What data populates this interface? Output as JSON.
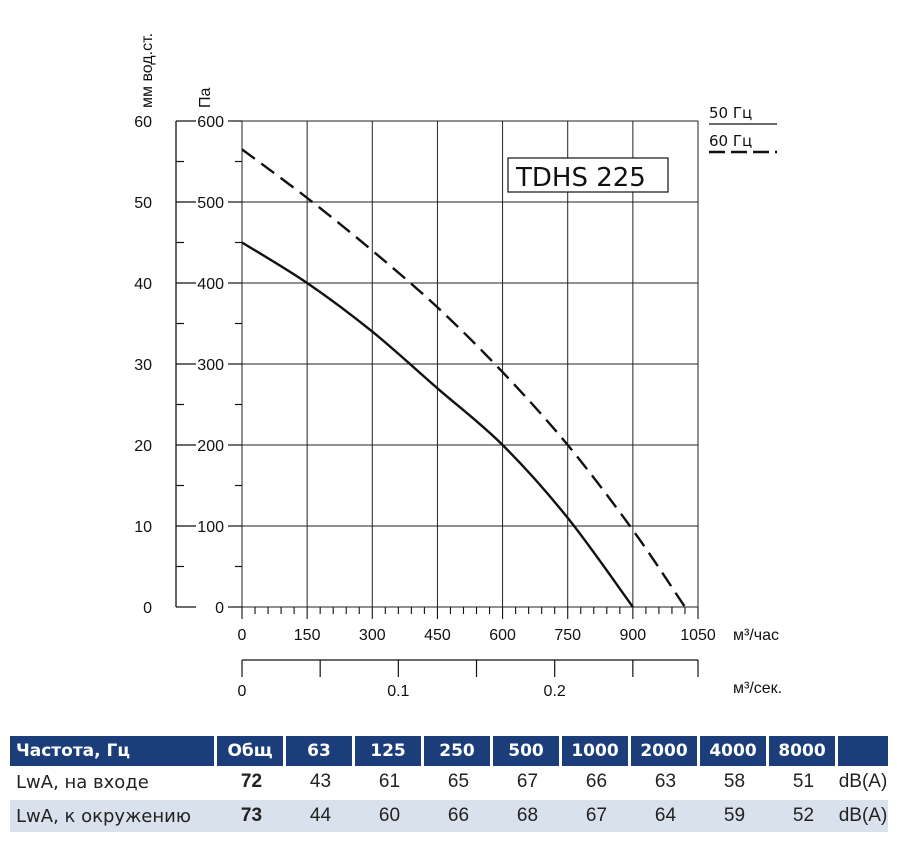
{
  "chart_data": {
    "type": "line",
    "model_label": "TDHS 225",
    "y_left_unit": "мм вод.ст.",
    "y_left_ticks": [
      "60",
      "50",
      "40",
      "30",
      "20",
      "10",
      "0"
    ],
    "y_unit": "Па",
    "y_ticks": [
      "600",
      "500",
      "400",
      "300",
      "200",
      "100",
      "0"
    ],
    "ylim": [
      0,
      600
    ],
    "x_unit": "м³/час",
    "x_ticks": [
      "0",
      "150",
      "300",
      "450",
      "600",
      "750",
      "900",
      "1050"
    ],
    "xlim": [
      0,
      1050
    ],
    "x2_unit": "м³/сек.",
    "x2_ticks": [
      "0",
      "0.1",
      "0.2"
    ],
    "legend": [
      "50 Гц",
      "60 Гц"
    ],
    "series": [
      {
        "name": "50 Гц",
        "style": "solid",
        "x": [
          0,
          150,
          300,
          450,
          600,
          750,
          900
        ],
        "y": [
          450,
          400,
          340,
          270,
          200,
          110,
          0
        ]
      },
      {
        "name": "60 Гц",
        "style": "dashed",
        "x": [
          0,
          150,
          300,
          450,
          600,
          750,
          900,
          1020
        ],
        "y": [
          565,
          505,
          440,
          370,
          290,
          200,
          95,
          0
        ]
      }
    ],
    "grid": true
  },
  "table": {
    "headers": [
      "Частота, Гц",
      "Общ",
      "63",
      "125",
      "250",
      "500",
      "1000",
      "2000",
      "4000",
      "8000",
      ""
    ],
    "rows": [
      {
        "label": "LwA, на входе",
        "total": "72",
        "values": [
          "43",
          "61",
          "65",
          "67",
          "66",
          "63",
          "58",
          "51"
        ],
        "unit": "dB(A)"
      },
      {
        "label": "LwA, к окружению",
        "total": "73",
        "values": [
          "44",
          "60",
          "66",
          "68",
          "67",
          "64",
          "59",
          "52"
        ],
        "unit": "dB(A)"
      }
    ]
  },
  "colors": {
    "header_bg": "#1b3d7a",
    "row_alt": "#d9e1ec",
    "grid": "#222222"
  }
}
